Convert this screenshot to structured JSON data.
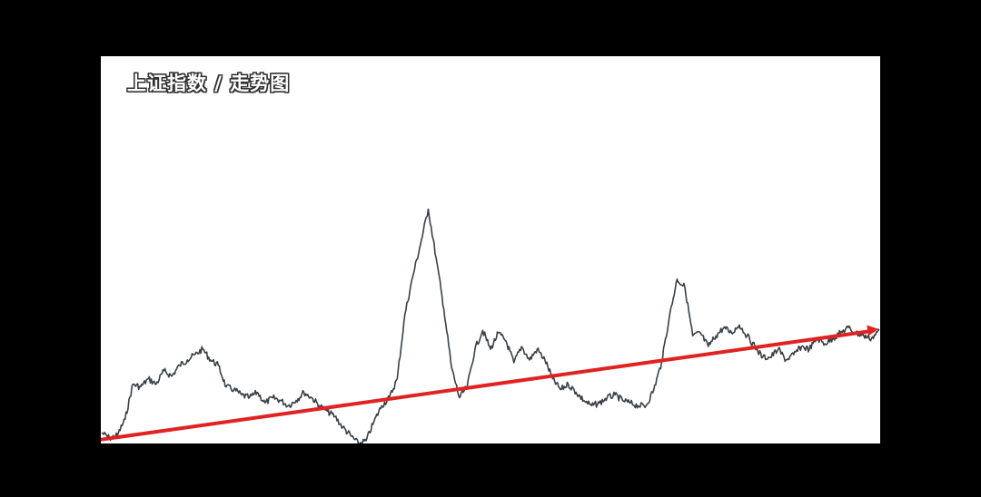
{
  "chart_data": {
    "type": "line",
    "title": "上证指数 / 走势图",
    "xlabel": "",
    "ylabel": "",
    "axes_shown": false,
    "grid": false,
    "x": [
      0,
      1,
      2,
      3,
      4,
      5,
      6,
      7,
      8,
      9,
      10,
      11,
      12,
      13,
      14,
      15,
      16,
      17,
      18,
      19,
      20,
      21,
      22,
      23,
      24,
      25,
      26,
      27,
      28,
      29,
      30,
      31,
      32,
      33,
      34,
      35,
      36,
      37,
      38,
      39,
      40,
      41,
      42,
      43,
      44,
      45,
      46,
      47,
      48,
      49,
      50,
      51,
      52,
      53,
      54,
      55,
      56,
      57,
      58,
      59,
      60,
      61,
      62,
      63,
      64,
      65,
      66,
      67,
      68,
      69,
      70,
      71,
      72,
      73,
      74,
      75,
      76,
      77,
      78,
      79,
      80,
      81,
      82,
      83,
      84,
      85,
      86,
      87,
      88,
      89,
      90,
      91,
      92,
      93,
      94,
      95,
      96,
      97,
      98,
      99,
      100
    ],
    "ylim": [
      0,
      100
    ],
    "series": [
      {
        "color": "#3a4048",
        "values": [
          4,
          2,
          3,
          9,
          22,
          21,
          24,
          22,
          27,
          25,
          29,
          31,
          33,
          35,
          31,
          29,
          21,
          20,
          18,
          17,
          19,
          15,
          17,
          16,
          14,
          16,
          19,
          17,
          14,
          12,
          10,
          6,
          3,
          0,
          1,
          8,
          14,
          17,
          24,
          48,
          62,
          74,
          87,
          69,
          50,
          28,
          17,
          21,
          35,
          42,
          35,
          41,
          38,
          30,
          36,
          31,
          35,
          31,
          24,
          20,
          22,
          19,
          16,
          14,
          15,
          17,
          18,
          16,
          15,
          14,
          14,
          20,
          30,
          47,
          61,
          58,
          40,
          41,
          36,
          40,
          43,
          41,
          44,
          40,
          36,
          32,
          32,
          35,
          31,
          33,
          36,
          35,
          39,
          37,
          39,
          41,
          43,
          41,
          40,
          39,
          42
        ]
      },
      {
        "color": "#e02222",
        "values": [
          1.5,
          42.5
        ],
        "x": [
          0,
          100
        ]
      }
    ]
  }
}
